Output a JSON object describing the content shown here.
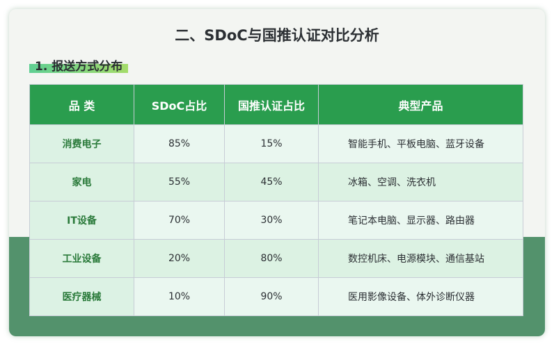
{
  "title": "二、SDoC与国推认证对比分析",
  "section": "1. 报送方式分布",
  "table": {
    "headers": [
      "品 类",
      "SDoC占比",
      "国推认证占比",
      "典型产品"
    ],
    "rows": [
      [
        "消费电子",
        "85%",
        "15%",
        "智能手机、平板电脑、蓝牙设备"
      ],
      [
        "家电",
        "55%",
        "45%",
        "冰箱、空调、洗衣机"
      ],
      [
        "IT设备",
        "70%",
        "30%",
        "笔记本电脑、显示器、路由器"
      ],
      [
        "工业设备",
        "20%",
        "80%",
        "数控机床、电源模块、通信基站"
      ],
      [
        "医疗器械",
        "10%",
        "90%",
        "医用影像设备、体外诊断仪器"
      ]
    ]
  },
  "colors": {
    "header": "#2a9d4e",
    "band": "#53926c",
    "category_text": "#2a7a3a"
  }
}
